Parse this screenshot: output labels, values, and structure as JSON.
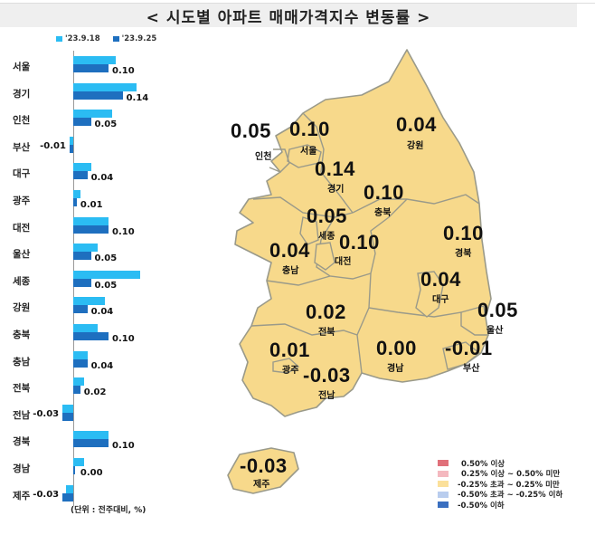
{
  "title": "< 시도별 아파트 매매가격지수 변동률 >",
  "chart_data": {
    "type": "bar",
    "orientation": "horizontal",
    "title": "시도별 아파트 매매가격지수 변동률",
    "categories": [
      "서울",
      "경기",
      "인천",
      "부산",
      "대구",
      "광주",
      "대전",
      "울산",
      "세종",
      "강원",
      "충북",
      "충남",
      "전북",
      "전남",
      "경북",
      "경남",
      "제주"
    ],
    "series": [
      {
        "name": "'23.9.18",
        "color": "#2bbcf3",
        "values": [
          0.12,
          0.18,
          0.11,
          -0.01,
          0.05,
          0.02,
          0.1,
          0.07,
          0.19,
          0.09,
          0.07,
          0.04,
          0.03,
          -0.03,
          0.1,
          0.03,
          -0.02
        ]
      },
      {
        "name": "'23.9.25",
        "color": "#1e6fbf",
        "values": [
          0.1,
          0.14,
          0.05,
          -0.01,
          0.04,
          0.01,
          0.1,
          0.05,
          0.05,
          0.04,
          0.1,
          0.04,
          0.02,
          -0.03,
          0.1,
          0.0,
          -0.03
        ]
      }
    ],
    "value_labels": [
      "0.10",
      "0.14",
      "0.05",
      "-0.01",
      "0.04",
      "0.01",
      "0.10",
      "0.05",
      "0.05",
      "0.04",
      "0.10",
      "0.04",
      "0.02",
      "-0.03",
      "0.10",
      "0.00",
      "-0.03"
    ],
    "xlabel": "",
    "ylabel": "",
    "unit_note": "(단위 : 전주대비, %)",
    "legend_position": "top"
  },
  "bar_chart": {
    "legend": [
      "'23.9.18",
      "'23.9.25"
    ],
    "unit": "(단위 : 전주대비, %)",
    "rows": [
      {
        "label": "서울",
        "v1": 0.12,
        "v2": 0.1,
        "text": "0.10"
      },
      {
        "label": "경기",
        "v1": 0.18,
        "v2": 0.14,
        "text": "0.14"
      },
      {
        "label": "인천",
        "v1": 0.11,
        "v2": 0.05,
        "text": "0.05"
      },
      {
        "label": "부산",
        "v1": -0.01,
        "v2": -0.01,
        "text": "-0.01"
      },
      {
        "label": "대구",
        "v1": 0.05,
        "v2": 0.04,
        "text": "0.04"
      },
      {
        "label": "광주",
        "v1": 0.02,
        "v2": 0.01,
        "text": "0.01"
      },
      {
        "label": "대전",
        "v1": 0.1,
        "v2": 0.1,
        "text": "0.10"
      },
      {
        "label": "울산",
        "v1": 0.07,
        "v2": 0.05,
        "text": "0.05"
      },
      {
        "label": "세종",
        "v1": 0.19,
        "v2": 0.05,
        "text": "0.05"
      },
      {
        "label": "강원",
        "v1": 0.09,
        "v2": 0.04,
        "text": "0.04"
      },
      {
        "label": "충북",
        "v1": 0.07,
        "v2": 0.1,
        "text": "0.10"
      },
      {
        "label": "충남",
        "v1": 0.04,
        "v2": 0.04,
        "text": "0.04"
      },
      {
        "label": "전북",
        "v1": 0.03,
        "v2": 0.02,
        "text": "0.02"
      },
      {
        "label": "전남",
        "v1": -0.03,
        "v2": -0.03,
        "text": "-0.03"
      },
      {
        "label": "경북",
        "v1": 0.1,
        "v2": 0.1,
        "text": "0.10"
      },
      {
        "label": "경남",
        "v1": 0.03,
        "v2": 0.0,
        "text": "0.00"
      },
      {
        "label": "제주",
        "v1": -0.02,
        "v2": -0.03,
        "text": "-0.03"
      }
    ]
  },
  "map": {
    "fill_color": "#f7d98b",
    "border_color": "#9a9a8a",
    "regions": [
      {
        "name": "인천",
        "value": "0.05"
      },
      {
        "name": "서울",
        "value": "0.10"
      },
      {
        "name": "강원",
        "value": "0.04"
      },
      {
        "name": "경기",
        "value": "0.14"
      },
      {
        "name": "충북",
        "value": "0.10"
      },
      {
        "name": "세종",
        "value": "0.05"
      },
      {
        "name": "대전",
        "value": "0.10"
      },
      {
        "name": "충남",
        "value": "0.04"
      },
      {
        "name": "경북",
        "value": "0.10"
      },
      {
        "name": "대구",
        "value": "0.04"
      },
      {
        "name": "울산",
        "value": "0.05"
      },
      {
        "name": "전북",
        "value": "0.02"
      },
      {
        "name": "광주",
        "value": "0.01"
      },
      {
        "name": "전남",
        "value": "-0.03"
      },
      {
        "name": "경남",
        "value": "0.00"
      },
      {
        "name": "부산",
        "value": "-0.01"
      },
      {
        "name": "제주",
        "value": "-0.03"
      }
    ]
  },
  "map_legend": [
    {
      "label": "0.50% 이상",
      "color": "#e0707a"
    },
    {
      "label": "0.25% 이상 ~ 0.50% 미만",
      "color": "#f4b8bf"
    },
    {
      "label": "-0.25% 초과 ~ 0.25% 미만",
      "color": "#fbe09a"
    },
    {
      "label": "-0.50% 초과 ~ -0.25% 이하",
      "color": "#b9cdee"
    },
    {
      "label": "-0.50% 이하",
      "color": "#3a6fc0"
    }
  ]
}
